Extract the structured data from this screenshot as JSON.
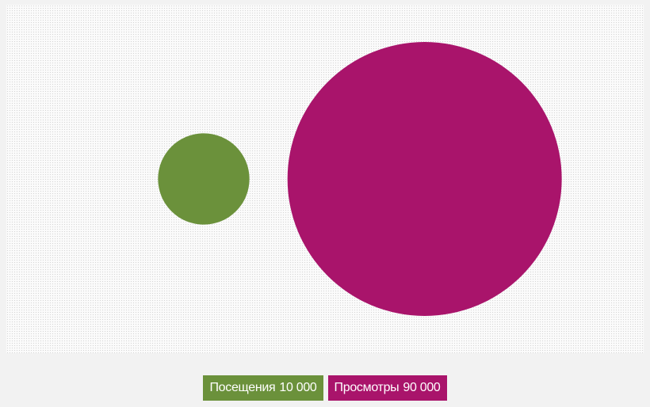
{
  "chart_data": {
    "type": "bubble",
    "title": "",
    "series": [
      {
        "name": "Посещения",
        "value": 10000,
        "value_label": "10 000",
        "color": "#6b913b"
      },
      {
        "name": "Просмотры",
        "value": 90000,
        "value_label": "90 000",
        "color": "#a9146b"
      }
    ],
    "legend_placement": "bottom-center"
  }
}
